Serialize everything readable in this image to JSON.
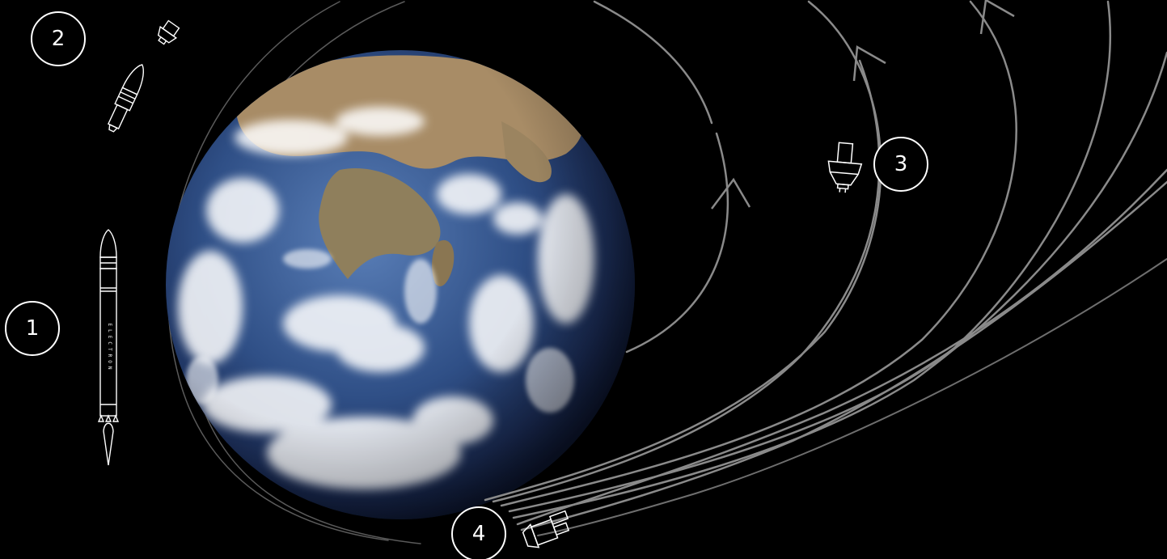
{
  "colors": {
    "background": "#000000",
    "orbit_light": "#8a8a8a",
    "orbit_dim": "#5a5a5a",
    "outline": "#ffffff"
  },
  "rocket": {
    "name": "ELECTRON"
  },
  "steps": [
    {
      "label": "1",
      "icon": "electron-rocket-icon"
    },
    {
      "label": "2",
      "icon": "fairing-separation-icon"
    },
    {
      "label": "3",
      "icon": "kick-stage-icon"
    },
    {
      "label": "4",
      "icon": "satellite-icon"
    }
  ]
}
